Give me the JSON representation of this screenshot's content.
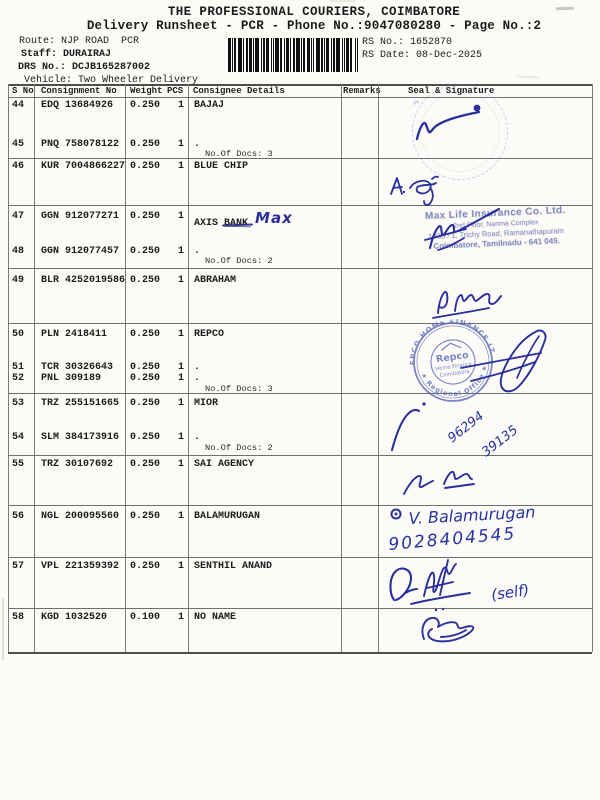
{
  "page": {
    "title": "THE PROFESSIONAL COURIERS, COIMBATORE",
    "subtitle": "Delivery Runsheet - PCR - Phone No.:9047080280 - Page No.:2"
  },
  "info": {
    "route": "Route: NJP ROAD  PCR",
    "staff": "Staff: DURAIRAJ",
    "drs_no": "DRS No.: DCJB165287002",
    "vehicle": "Vehicle: Two Wheeler Delivery",
    "rs_no": "RS No.: 1652870",
    "rs_date": "RS Date: 08-Dec-2025"
  },
  "table": {
    "headers": {
      "s_no": "S No",
      "consignment_no": "Consignment No",
      "weight": "Weight",
      "pcs": "PCS",
      "consignee": "Consignee Details",
      "remarks": "Remarks",
      "seal": "Seal & Signature"
    },
    "rows": [
      {
        "s_no": "44",
        "consignment_no": "EDQ 13684926",
        "weight": "0.250",
        "pcs": "1",
        "consignee": "BAJAJ"
      },
      {
        "s_no": "45",
        "consignment_no": "PNQ 758078122",
        "weight": "0.250",
        "pcs": "1",
        "consignee": ".",
        "docs_note": "No.Of Docs: 3"
      },
      {
        "s_no": "46",
        "consignment_no": "KUR 7004866227",
        "weight": "0.250",
        "pcs": "1",
        "consignee": "BLUE CHIP"
      },
      {
        "s_no": "47",
        "consignment_no": "GGN 912077271",
        "weight": "0.250",
        "pcs": "1",
        "consignee": "AXIS ",
        "consignee_struck": "BANK",
        "handwritten": "Max"
      },
      {
        "s_no": "48",
        "consignment_no": "GGN 912077457",
        "weight": "0.250",
        "pcs": "1",
        "consignee": ".",
        "docs_note": "No.Of Docs: 2"
      },
      {
        "s_no": "49",
        "consignment_no": "BLR 4252019586",
        "weight": "0.250",
        "pcs": "1",
        "consignee": "ABRAHAM"
      },
      {
        "s_no": "50",
        "consignment_no": "PLN 2418411",
        "weight": "0.250",
        "pcs": "1",
        "consignee": "REPCO"
      },
      {
        "s_no": "51",
        "consignment_no": "TCR 30326643",
        "weight": "0.250",
        "pcs": "1",
        "consignee": "."
      },
      {
        "s_no": "52",
        "consignment_no": "PNL 309189",
        "weight": "0.250",
        "pcs": "1",
        "consignee": ".",
        "docs_note": "No.Of Docs: 3"
      },
      {
        "s_no": "53",
        "consignment_no": "TRZ 255151665",
        "weight": "0.250",
        "pcs": "1",
        "consignee": "MIOR"
      },
      {
        "s_no": "54",
        "consignment_no": "SLM 384173916",
        "weight": "0.250",
        "pcs": "1",
        "consignee": ".",
        "docs_note": "No.Of Docs: 2"
      },
      {
        "s_no": "55",
        "consignment_no": "TRZ 30107692",
        "weight": "0.250",
        "pcs": "1",
        "consignee": "SAI AGENCY"
      },
      {
        "s_no": "56",
        "consignment_no": "NGL 200095560",
        "weight": "0.250",
        "pcs": "1",
        "consignee": "BALAMURUGAN"
      },
      {
        "s_no": "57",
        "consignment_no": "VPL 221359392",
        "weight": "0.250",
        "pcs": "1",
        "consignee": "SENTHIL ANAND"
      },
      {
        "s_no": "58",
        "consignment_no": "KGD 1032520",
        "weight": "0.100",
        "pcs": "1",
        "consignee": "NO NAME"
      }
    ]
  },
  "handwriting": {
    "balamurugan_name": "V. Balamurugan",
    "balamurugan_phone": "9028404545",
    "self_note": "(self)",
    "mobile_part1": "96294",
    "mobile_part2": "39135"
  },
  "stamps": {
    "max_life": {
      "line1": "Max Life Insurance Co. Ltd.",
      "line2": "2nd Floor, Nanma Complex",
      "line3": "1935 / 1, Trichy Road, Ramanathapuram",
      "line4": "Coimbatore, Tamilnadu - 641 045."
    },
    "repco": {
      "arc_top": "REPCO HOME FINANCE LTD",
      "arc_bottom": "★ Regional Office ★",
      "center1": "Repco",
      "center2": "Home Finance",
      "center3": "Coimbatore"
    }
  },
  "colors": {
    "ink": "#2a2f9b",
    "ink_dark": "#1f2380",
    "stamp_blue": "#5a68bb",
    "stamp_purple": "#8a76c6",
    "line": "#6f6f6f"
  }
}
